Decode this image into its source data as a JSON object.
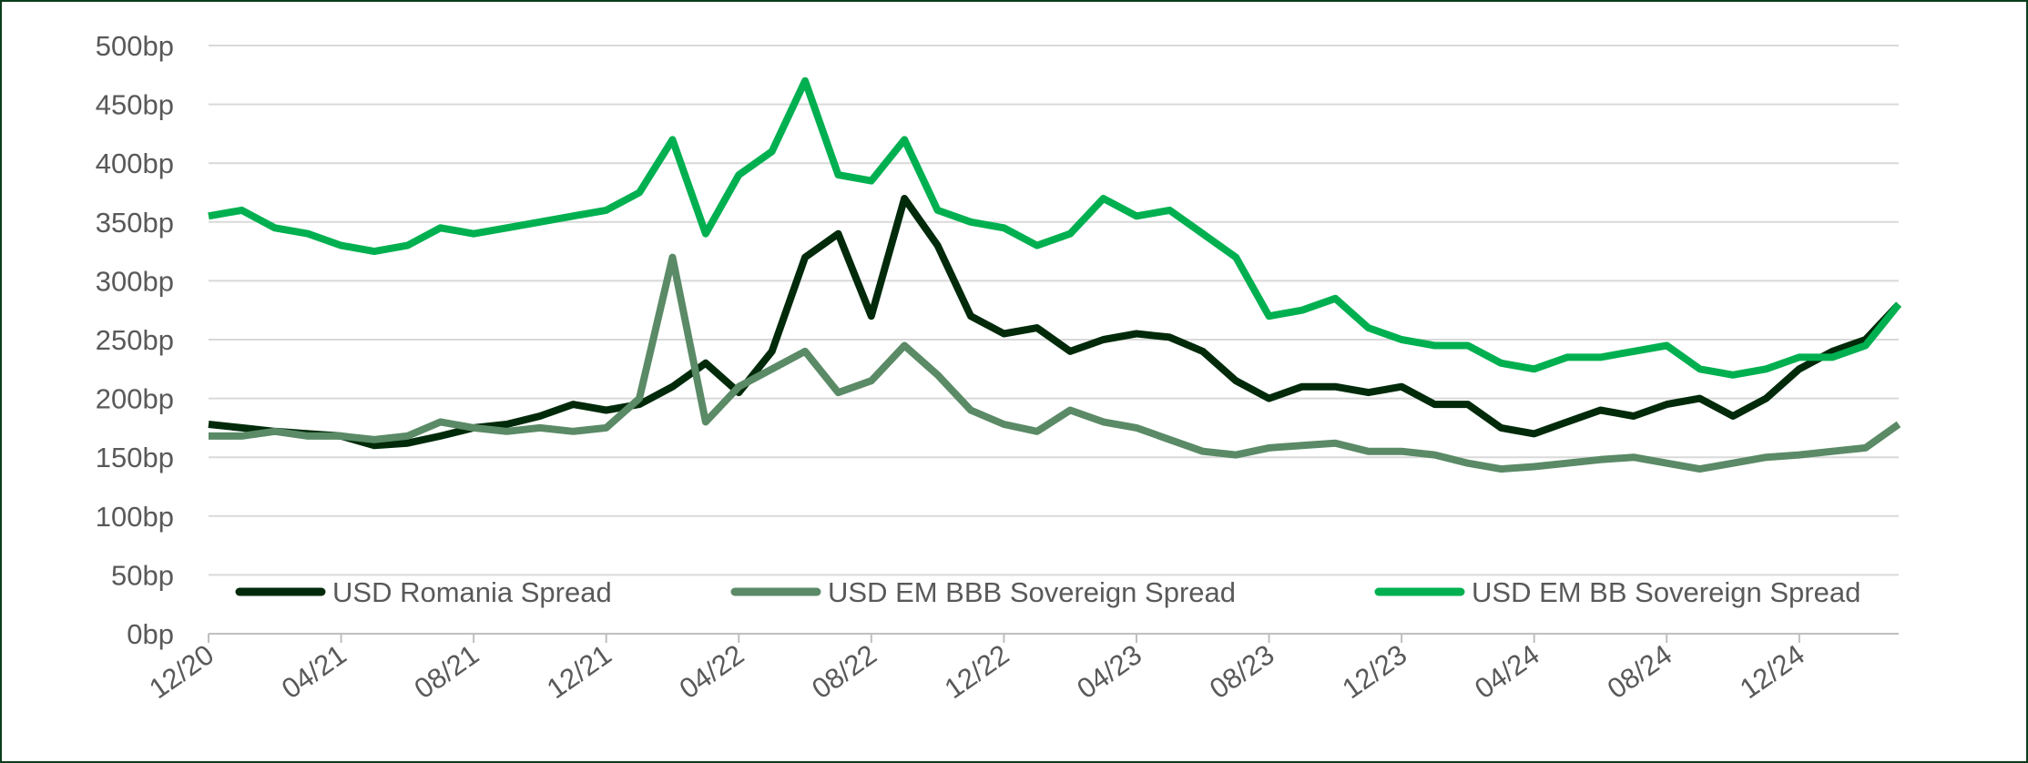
{
  "chart_data": {
    "type": "line",
    "x": [
      "12/20",
      "01/21",
      "02/21",
      "03/21",
      "04/21",
      "05/21",
      "06/21",
      "07/21",
      "08/21",
      "09/21",
      "10/21",
      "11/21",
      "12/21",
      "01/22",
      "02/22",
      "03/22",
      "04/22",
      "05/22",
      "06/22",
      "07/22",
      "08/22",
      "09/22",
      "10/22",
      "11/22",
      "12/22",
      "01/23",
      "02/23",
      "03/23",
      "04/23",
      "05/23",
      "06/23",
      "07/23",
      "08/23",
      "09/23",
      "10/23",
      "11/23",
      "12/23",
      "01/24",
      "02/24",
      "03/24",
      "04/24",
      "05/24",
      "06/24",
      "07/24",
      "08/24",
      "09/24",
      "10/24",
      "11/24",
      "12/24",
      "01/25",
      "02/25",
      "03/25"
    ],
    "xticks": [
      "12/20",
      "04/21",
      "08/21",
      "12/21",
      "04/22",
      "08/22",
      "12/22",
      "04/23",
      "08/23",
      "12/23",
      "04/24",
      "08/24",
      "12/24"
    ],
    "series": [
      {
        "name": "USD Romania Spread",
        "color": "#002a0a",
        "values": [
          178,
          175,
          172,
          170,
          168,
          160,
          162,
          168,
          175,
          178,
          185,
          195,
          190,
          195,
          210,
          230,
          205,
          240,
          320,
          340,
          270,
          370,
          330,
          270,
          255,
          260,
          240,
          250,
          255,
          252,
          240,
          215,
          200,
          210,
          210,
          205,
          210,
          195,
          195,
          175,
          170,
          180,
          190,
          185,
          195,
          200,
          185,
          200,
          225,
          240,
          250,
          280
        ]
      },
      {
        "name": "USD EM BBB Sovereign Spread",
        "color": "#5a8a66",
        "values": [
          168,
          168,
          172,
          168,
          168,
          165,
          168,
          180,
          175,
          172,
          175,
          172,
          175,
          200,
          320,
          180,
          210,
          225,
          240,
          205,
          215,
          245,
          220,
          190,
          178,
          172,
          190,
          180,
          175,
          165,
          155,
          152,
          158,
          160,
          162,
          155,
          155,
          152,
          145,
          140,
          142,
          145,
          148,
          150,
          145,
          140,
          145,
          150,
          152,
          155,
          158,
          178
        ]
      },
      {
        "name": "USD EM BB Sovereign Spread",
        "color": "#00b050",
        "values": [
          355,
          360,
          345,
          340,
          330,
          325,
          330,
          345,
          340,
          345,
          350,
          355,
          360,
          375,
          420,
          340,
          390,
          410,
          470,
          390,
          385,
          420,
          360,
          350,
          345,
          330,
          340,
          370,
          355,
          360,
          340,
          320,
          270,
          275,
          285,
          260,
          250,
          245,
          245,
          230,
          225,
          235,
          235,
          240,
          245,
          225,
          220,
          225,
          235,
          235,
          245,
          280
        ]
      }
    ],
    "ylim": [
      0,
      500
    ],
    "yticks": [
      {
        "value": 0,
        "label": "0bp"
      },
      {
        "value": 50,
        "label": "50bp"
      },
      {
        "value": 100,
        "label": "100bp"
      },
      {
        "value": 150,
        "label": "150bp"
      },
      {
        "value": 200,
        "label": "200bp"
      },
      {
        "value": 250,
        "label": "250bp"
      },
      {
        "value": 300,
        "label": "300bp"
      },
      {
        "value": 350,
        "label": "350bp"
      },
      {
        "value": 400,
        "label": "400bp"
      },
      {
        "value": 450,
        "label": "450bp"
      },
      {
        "value": 500,
        "label": "500bp"
      }
    ],
    "grid": true,
    "legend": "bottom"
  }
}
